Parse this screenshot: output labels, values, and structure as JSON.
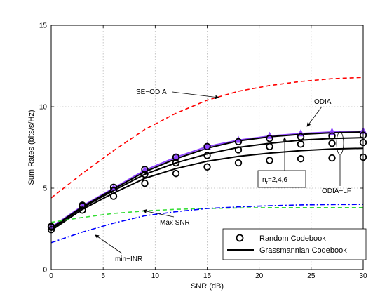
{
  "chart_data": {
    "type": "line",
    "title": "",
    "xlabel": "SNR (dB)",
    "ylabel": "Sum Rates (bits/s/Hz)",
    "xlim": [
      0,
      30
    ],
    "ylim": [
      0,
      15
    ],
    "xticks": [
      0,
      5,
      10,
      15,
      20,
      25,
      30
    ],
    "yticks": [
      0,
      5,
      10,
      15
    ],
    "grid": true,
    "legend_position": "bottom-right",
    "legend": [
      {
        "label": "Random Codebook",
        "marker": "circle"
      },
      {
        "label": "Grassmannian Codebook",
        "line": "solid"
      }
    ],
    "series": [
      {
        "name": "SE-ODIA",
        "color": "#ff0000",
        "dash": "dashed",
        "x": [
          0,
          3,
          6,
          9,
          12,
          15,
          18,
          21,
          24,
          27,
          30
        ],
        "y": [
          4.4,
          5.9,
          7.3,
          8.6,
          9.6,
          10.4,
          10.95,
          11.3,
          11.55,
          11.72,
          11.8
        ]
      },
      {
        "name": "ODIA",
        "color": "#8e44ff",
        "dash": "solid",
        "marker": "triangle",
        "x": [
          0,
          3,
          6,
          9,
          12,
          15,
          18,
          21,
          24,
          27,
          30
        ],
        "y": [
          2.6,
          3.9,
          5.0,
          6.1,
          6.9,
          7.55,
          7.95,
          8.2,
          8.35,
          8.45,
          8.5
        ]
      },
      {
        "name": "",
        "color": "#000000",
        "dash": "solid",
        "x": [
          0,
          3,
          6,
          9,
          12,
          15,
          18,
          21,
          24,
          27,
          30
        ],
        "y": [
          2.55,
          3.85,
          4.95,
          6.0,
          6.8,
          7.45,
          7.9,
          8.15,
          8.3,
          8.4,
          8.45
        ]
      },
      {
        "name": "",
        "color": "#000000",
        "dash": "solid",
        "x": [
          0,
          3,
          6,
          9,
          12,
          15,
          18,
          21,
          24,
          27,
          30
        ],
        "y": [
          2.5,
          3.8,
          4.85,
          5.85,
          6.55,
          7.1,
          7.5,
          7.75,
          7.95,
          8.05,
          8.1
        ]
      },
      {
        "name": "",
        "color": "#000000",
        "dash": "solid",
        "x": [
          0,
          3,
          6,
          9,
          12,
          15,
          18,
          21,
          24,
          27,
          30
        ],
        "y": [
          2.4,
          3.7,
          4.7,
          5.6,
          6.2,
          6.65,
          6.95,
          7.15,
          7.3,
          7.4,
          7.45
        ]
      },
      {
        "name": "Max SNR",
        "color": "#33dd33",
        "dash": "dashed",
        "x": [
          0,
          3,
          6,
          9,
          12,
          15,
          18,
          21,
          24,
          27,
          30
        ],
        "y": [
          2.9,
          3.2,
          3.45,
          3.6,
          3.7,
          3.75,
          3.78,
          3.8,
          3.8,
          3.8,
          3.8
        ]
      },
      {
        "name": "min-INR",
        "color": "#0000ff",
        "dash": "dashdot",
        "x": [
          0,
          3,
          6,
          9,
          12,
          15,
          18,
          21,
          24,
          27,
          30
        ],
        "y": [
          1.65,
          2.3,
          2.85,
          3.3,
          3.55,
          3.75,
          3.85,
          3.92,
          3.97,
          3.99,
          4.0
        ]
      }
    ],
    "random_codebook_points": [
      {
        "x": [
          0,
          3,
          6,
          9,
          12,
          15,
          18,
          21,
          24,
          27,
          30
        ],
        "y": [
          2.65,
          3.95,
          5.05,
          6.15,
          6.9,
          7.55,
          7.85,
          8.05,
          8.15,
          8.2,
          8.25
        ]
      },
      {
        "x": [
          0,
          3,
          6,
          9,
          12,
          15,
          18,
          21,
          24,
          27,
          30
        ],
        "y": [
          2.6,
          3.9,
          4.85,
          5.85,
          6.55,
          7.0,
          7.35,
          7.55,
          7.7,
          7.75,
          7.8
        ]
      },
      {
        "x": [
          0,
          3,
          6,
          9,
          12,
          15,
          18,
          21,
          24,
          27,
          30
        ],
        "y": [
          2.45,
          3.65,
          4.5,
          5.3,
          5.9,
          6.3,
          6.55,
          6.7,
          6.8,
          6.85,
          6.9
        ]
      }
    ],
    "annotations": {
      "se_odia": "SE−ODIA",
      "odia": "ODIA",
      "nr": "n",
      "nr_sub": "r",
      "nr_values": "=2,4,6",
      "odia_lf": "ODIA−LF",
      "max_snr": "Max SNR",
      "min_inr": "min−INR"
    }
  }
}
